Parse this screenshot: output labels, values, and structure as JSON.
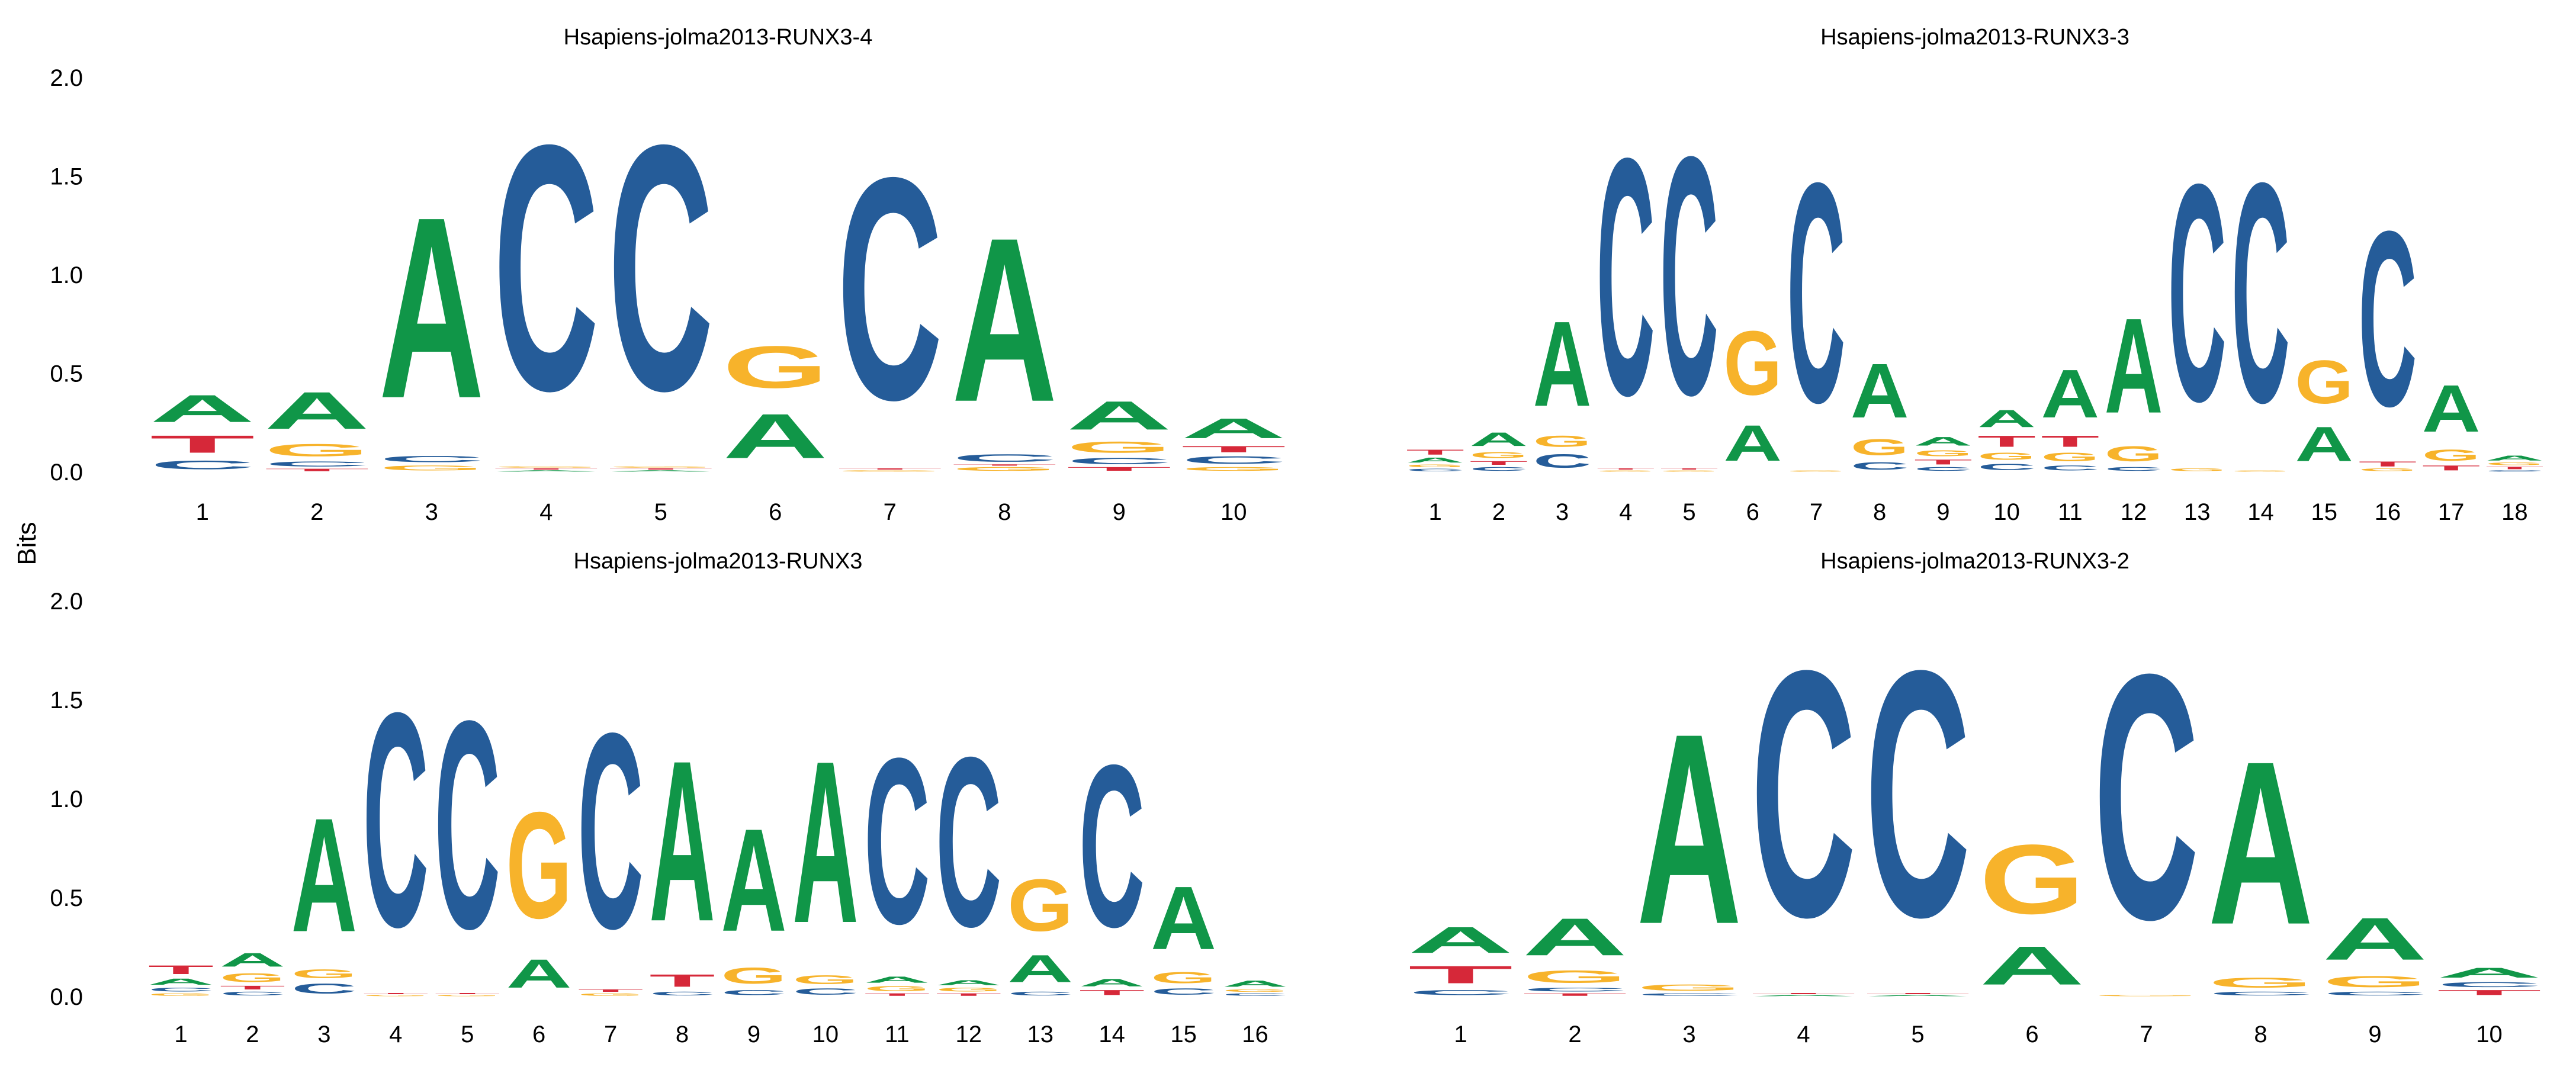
{
  "ylabel": "Bits",
  "colors": {
    "A": "#109648",
    "C": "#255C99",
    "G": "#F7B32B",
    "T": "#D62839"
  },
  "chart_data": [
    {
      "type": "sequence-logo",
      "title": "Hsapiens-jolma2013-RUNX3-4",
      "ylim": [
        0,
        2
      ],
      "yticks": [
        "0.0",
        "0.5",
        "1.0",
        "1.5",
        "2.0"
      ],
      "positions": [
        "1",
        "2",
        "3",
        "4",
        "5",
        "6",
        "7",
        "8",
        "9",
        "10"
      ],
      "stacks": [
        [
          [
            "C",
            0.07
          ],
          [
            "T",
            0.14
          ],
          [
            "A",
            0.22
          ]
        ],
        [
          [
            "T",
            0.02
          ],
          [
            "C",
            0.04
          ],
          [
            "G",
            0.1
          ],
          [
            "A",
            0.3
          ]
        ],
        [
          [
            "G",
            0.04
          ],
          [
            "C",
            0.05
          ],
          [
            "A",
            1.47
          ]
        ],
        [
          [
            "A",
            0.01
          ],
          [
            "T",
            0.01
          ],
          [
            "G",
            0.01
          ],
          [
            "C",
            1.99
          ]
        ],
        [
          [
            "A",
            0.01
          ],
          [
            "T",
            0.01
          ],
          [
            "G",
            0.01
          ],
          [
            "C",
            1.99
          ]
        ],
        [
          [
            "A",
            0.36
          ],
          [
            "G",
            0.34
          ]
        ],
        [
          [
            "G",
            0.01
          ],
          [
            "T",
            0.01
          ],
          [
            "C",
            1.8
          ]
        ],
        [
          [
            "G",
            0.03
          ],
          [
            "T",
            0.01
          ],
          [
            "C",
            0.06
          ],
          [
            "A",
            1.33
          ]
        ],
        [
          [
            "T",
            0.03
          ],
          [
            "C",
            0.05
          ],
          [
            "G",
            0.09
          ],
          [
            "A",
            0.23
          ]
        ],
        [
          [
            "G",
            0.03
          ],
          [
            "C",
            0.06
          ],
          [
            "T",
            0.05
          ],
          [
            "A",
            0.16
          ]
        ]
      ]
    },
    {
      "type": "sequence-logo",
      "title": "Hsapiens-jolma2013-RUNX3-3",
      "ylim": [
        0,
        2
      ],
      "yticks": [
        "0.0",
        "0.5",
        "1.0",
        "1.5",
        "2.0"
      ],
      "positions": [
        "1",
        "2",
        "3",
        "4",
        "5",
        "6",
        "7",
        "8",
        "9",
        "10",
        "11",
        "12",
        "13",
        "14",
        "15",
        "16",
        "17",
        "18"
      ],
      "stacks": [
        [
          [
            "C",
            0.02
          ],
          [
            "G",
            0.02
          ],
          [
            "A",
            0.04
          ],
          [
            "T",
            0.04
          ]
        ],
        [
          [
            "C",
            0.03
          ],
          [
            "T",
            0.03
          ],
          [
            "G",
            0.05
          ],
          [
            "A",
            0.11
          ]
        ],
        [
          [
            "C",
            0.11
          ],
          [
            "G",
            0.09
          ],
          [
            "A",
            0.69
          ]
        ],
        [
          [
            "G",
            0.01
          ],
          [
            "T",
            0.01
          ],
          [
            "C",
            1.92
          ]
        ],
        [
          [
            "G",
            0.01
          ],
          [
            "T",
            0.01
          ],
          [
            "C",
            1.93
          ]
        ],
        [
          [
            "A",
            0.29
          ],
          [
            "G",
            0.52
          ]
        ],
        [
          [
            "G",
            0.01
          ],
          [
            "C",
            1.78
          ]
        ],
        [
          [
            "C",
            0.06
          ],
          [
            "G",
            0.13
          ],
          [
            "A",
            0.44
          ]
        ],
        [
          [
            "C",
            0.03
          ],
          [
            "T",
            0.04
          ],
          [
            "G",
            0.05
          ],
          [
            "A",
            0.07
          ]
        ],
        [
          [
            "C",
            0.05
          ],
          [
            "G",
            0.06
          ],
          [
            "T",
            0.09
          ],
          [
            "A",
            0.14
          ]
        ],
        [
          [
            "C",
            0.04
          ],
          [
            "G",
            0.07
          ],
          [
            "T",
            0.09
          ],
          [
            "A",
            0.39
          ]
        ],
        [
          [
            "C",
            0.03
          ],
          [
            "G",
            0.12
          ],
          [
            "A",
            0.77
          ]
        ],
        [
          [
            "G",
            0.02
          ],
          [
            "C",
            1.76
          ]
        ],
        [
          [
            "G",
            0.01
          ],
          [
            "C",
            1.78
          ]
        ],
        [
          [
            "A",
            0.28
          ],
          [
            "G",
            0.35
          ]
        ],
        [
          [
            "G",
            0.02
          ],
          [
            "T",
            0.04
          ],
          [
            "C",
            1.42
          ]
        ],
        [
          [
            "T",
            0.04
          ],
          [
            "G",
            0.09
          ],
          [
            "A",
            0.38
          ]
        ],
        [
          [
            "C",
            0.01
          ],
          [
            "T",
            0.02
          ],
          [
            "G",
            0.02
          ],
          [
            "A",
            0.04
          ]
        ]
      ]
    },
    {
      "type": "sequence-logo",
      "title": "Hsapiens-jolma2013-RUNX3",
      "ylim": [
        0,
        2
      ],
      "yticks": [
        "0.0",
        "0.5",
        "1.0",
        "1.5",
        "2.0"
      ],
      "positions": [
        "1",
        "2",
        "3",
        "4",
        "5",
        "6",
        "7",
        "8",
        "9",
        "10",
        "11",
        "12",
        "13",
        "14",
        "15",
        "16"
      ],
      "stacks": [
        [
          [
            "G",
            0.02
          ],
          [
            "C",
            0.03
          ],
          [
            "A",
            0.05
          ],
          [
            "T",
            0.07
          ]
        ],
        [
          [
            "C",
            0.03
          ],
          [
            "T",
            0.03
          ],
          [
            "G",
            0.07
          ],
          [
            "A",
            0.11
          ]
        ],
        [
          [
            "C",
            0.08
          ],
          [
            "G",
            0.07
          ],
          [
            "A",
            0.92
          ]
        ],
        [
          [
            "G",
            0.01
          ],
          [
            "T",
            0.01
          ],
          [
            "C",
            1.73
          ]
        ],
        [
          [
            "G",
            0.01
          ],
          [
            "T",
            0.01
          ],
          [
            "C",
            1.68
          ]
        ],
        [
          [
            "A",
            0.23
          ],
          [
            "G",
            0.86
          ]
        ],
        [
          [
            "G",
            0.02
          ],
          [
            "T",
            0.02
          ],
          [
            "C",
            1.58
          ]
        ],
        [
          [
            "C",
            0.03
          ],
          [
            "T",
            0.1
          ],
          [
            "A",
            1.3
          ]
        ],
        [
          [
            "C",
            0.04
          ],
          [
            "G",
            0.13
          ],
          [
            "A",
            0.83
          ]
        ],
        [
          [
            "C",
            0.05
          ],
          [
            "G",
            0.07
          ],
          [
            "A",
            1.31
          ]
        ],
        [
          [
            "T",
            0.02
          ],
          [
            "G",
            0.04
          ],
          [
            "A",
            0.05
          ],
          [
            "C",
            1.34
          ]
        ],
        [
          [
            "T",
            0.02
          ],
          [
            "G",
            0.03
          ],
          [
            "A",
            0.04
          ],
          [
            "C",
            1.37
          ]
        ],
        [
          [
            "C",
            0.03
          ],
          [
            "A",
            0.22
          ],
          [
            "G",
            0.42
          ]
        ],
        [
          [
            "T",
            0.04
          ],
          [
            "A",
            0.06
          ],
          [
            "C",
            1.31
          ]
        ],
        [
          [
            "C",
            0.05
          ],
          [
            "G",
            0.09
          ],
          [
            "A",
            0.51
          ]
        ],
        [
          [
            "C",
            0.02
          ],
          [
            "G",
            0.02
          ],
          [
            "A",
            0.05
          ]
        ]
      ]
    },
    {
      "type": "sequence-logo",
      "title": "Hsapiens-jolma2013-RUNX3-2",
      "ylim": [
        0,
        2
      ],
      "yticks": [
        "0.0",
        "0.5",
        "1.0",
        "1.5",
        "2.0"
      ],
      "positions": [
        "1",
        "2",
        "3",
        "4",
        "5",
        "6",
        "7",
        "8",
        "9",
        "10"
      ],
      "stacks": [
        [
          [
            "C",
            0.04
          ],
          [
            "T",
            0.14
          ],
          [
            "A",
            0.21
          ]
        ],
        [
          [
            "T",
            0.02
          ],
          [
            "C",
            0.03
          ],
          [
            "G",
            0.1
          ],
          [
            "A",
            0.3
          ]
        ],
        [
          [
            "C",
            0.02
          ],
          [
            "G",
            0.05
          ],
          [
            "A",
            1.54
          ]
        ],
        [
          [
            "A",
            0.01
          ],
          [
            "T",
            0.01
          ],
          [
            "C",
            1.99
          ]
        ],
        [
          [
            "A",
            0.01
          ],
          [
            "T",
            0.01
          ],
          [
            "C",
            1.99
          ]
        ],
        [
          [
            "A",
            0.31
          ],
          [
            "G",
            0.56
          ]
        ],
        [
          [
            "G",
            0.01
          ],
          [
            "C",
            1.98
          ]
        ],
        [
          [
            "C",
            0.03
          ],
          [
            "G",
            0.08
          ],
          [
            "A",
            1.32
          ]
        ],
        [
          [
            "C",
            0.03
          ],
          [
            "G",
            0.09
          ],
          [
            "A",
            0.34
          ]
        ],
        [
          [
            "T",
            0.04
          ],
          [
            "C",
            0.04
          ],
          [
            "A",
            0.08
          ]
        ]
      ]
    }
  ]
}
